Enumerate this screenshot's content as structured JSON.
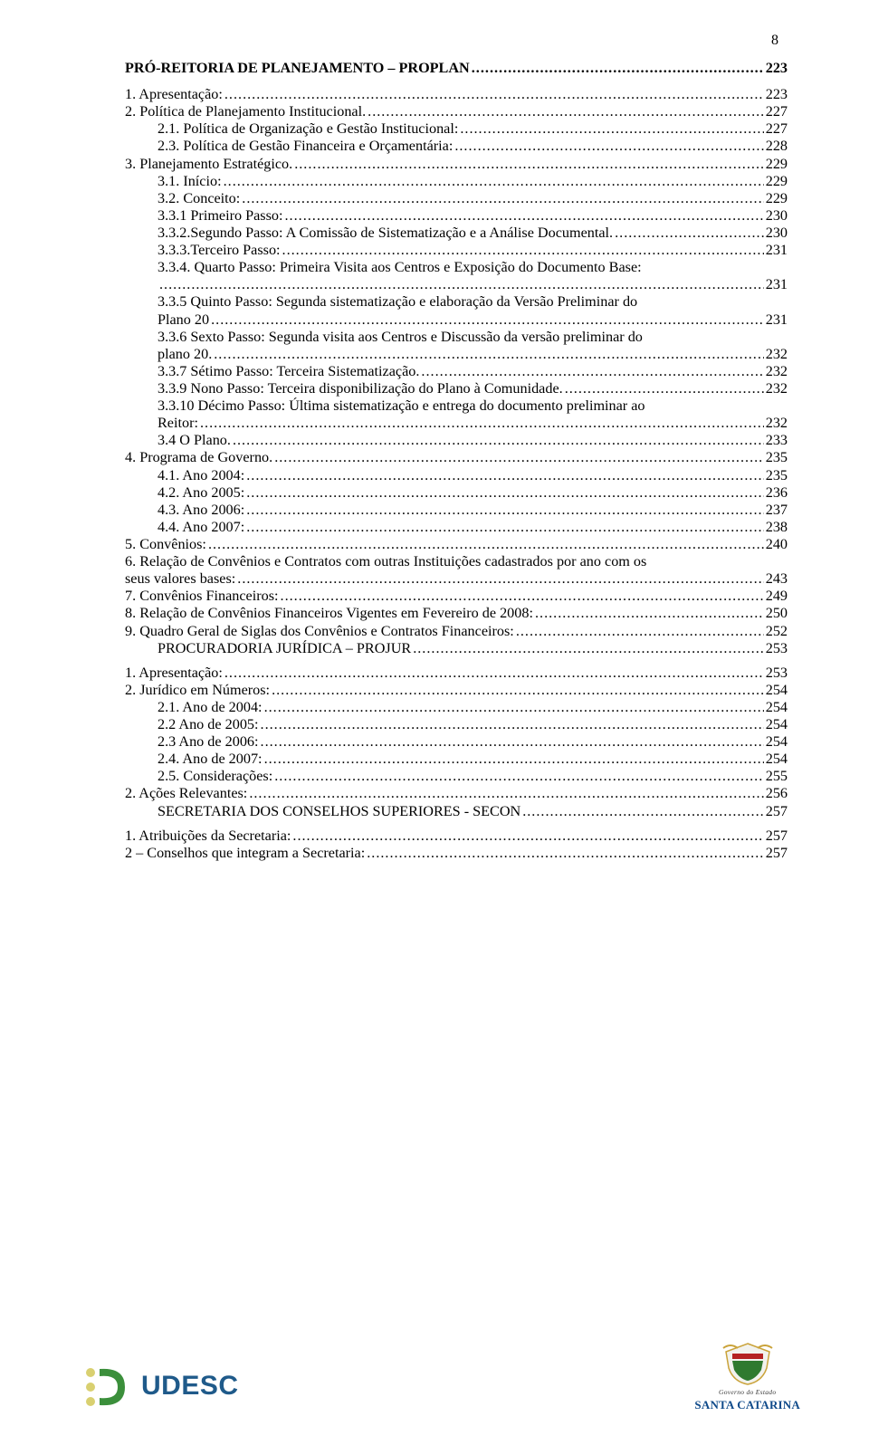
{
  "page_number": "8",
  "chapters": [
    {
      "label": "PRÓ-REITORIA DE PLANEJAMENTO – PROPLAN",
      "page": "223"
    },
    {
      "label": "PROCURADORIA JURÍDICA – PROJUR",
      "page": "253"
    },
    {
      "label": "SECRETARIA DOS CONSELHOS SUPERIORES - SECON",
      "page": "257"
    }
  ],
  "entries": [
    {
      "indent": "ind1",
      "label": "1. Apresentação:",
      "page": "223"
    },
    {
      "indent": "ind1",
      "label": "2. Política de Planejamento Institucional.",
      "page": "227"
    },
    {
      "indent": "ind2",
      "label": "2.1. Política de Organização e Gestão Institucional:",
      "page": "227"
    },
    {
      "indent": "ind2",
      "label": "2.3. Política de Gestão Financeira e Orçamentária:",
      "page": "228"
    },
    {
      "indent": "ind1",
      "label": "3. Planejamento Estratégico.",
      "page": "229"
    },
    {
      "indent": "ind2",
      "label": "3.1. Início:",
      "page": "229"
    },
    {
      "indent": "ind2",
      "label": "3.2. Conceito:",
      "page": "229"
    },
    {
      "indent": "ind3",
      "label": "3.3.1 Primeiro Passo:",
      "page": "230"
    },
    {
      "indent": "ind3",
      "label": "3.3.2.Segundo Passo: A Comissão de Sistematização e a Análise Documental.",
      "page": "230"
    },
    {
      "indent": "ind3",
      "label": "3.3.3.Terceiro Passo:",
      "page": "231"
    },
    {
      "indent": "ind3",
      "label": "3.3.4. Quarto Passo: Primeira Visita aos Centros e Exposição do Documento Base:",
      "cont": "",
      "page": "231"
    },
    {
      "indent": "ind3",
      "label": "3.3.5 Quinto Passo: Segunda sistematização e elaboração da Versão Preliminar do",
      "cont": "Plano 20",
      "page": "231"
    },
    {
      "indent": "ind3",
      "label": "3.3.6 Sexto Passo: Segunda visita aos Centros e Discussão da versão preliminar do",
      "cont": "plano 20.",
      "page": "232"
    },
    {
      "indent": "ind3",
      "label": "3.3.7 Sétimo Passo: Terceira Sistematização.",
      "page": "232"
    },
    {
      "indent": "ind3",
      "label": "3.3.9 Nono Passo: Terceira disponibilização do Plano à Comunidade.",
      "page": "232"
    },
    {
      "indent": "ind3",
      "label": "3.3.10 Décimo Passo: Última sistematização e entrega do documento preliminar ao",
      "cont": "Reitor:",
      "page": "232"
    },
    {
      "indent": "ind2",
      "label": "3.4 O Plano.",
      "page": "233"
    },
    {
      "indent": "ind1",
      "label": "4. Programa de Governo.",
      "page": "235"
    },
    {
      "indent": "ind2",
      "label": "4.1. Ano 2004:",
      "page": "235"
    },
    {
      "indent": "ind2",
      "label": "4.2. Ano 2005:",
      "page": "236"
    },
    {
      "indent": "ind2",
      "label": "4.3. Ano 2006:",
      "page": "237"
    },
    {
      "indent": "ind2",
      "label": "4.4. Ano 2007:",
      "page": "238"
    },
    {
      "indent": "ind1",
      "label": "5. Convênios:",
      "page": "240"
    },
    {
      "indent": "ind1",
      "label": "6. Relação de Convênios e Contratos com outras Instituições cadastrados por ano com os",
      "cont_ind": "ind1",
      "cont": "seus valores bases:",
      "page": "243"
    },
    {
      "indent": "ind1",
      "label": "7. Convênios Financeiros:",
      "page": "249"
    },
    {
      "indent": "ind1",
      "label": "8. Relação de Convênios Financeiros Vigentes em Fevereiro de 2008:",
      "page": "250"
    },
    {
      "indent": "ind1",
      "label": "9. Quadro Geral de Siglas dos Convênios e Contratos Financeiros:",
      "page": "252"
    }
  ],
  "entries2": [
    {
      "indent": "ind1",
      "label": "1.    Apresentação:",
      "page": "253"
    },
    {
      "indent": "ind1",
      "label": "2. Jurídico em Números:",
      "page": "254"
    },
    {
      "indent": "ind2",
      "label": "2.1. Ano de 2004:",
      "page": "254"
    },
    {
      "indent": "ind2",
      "label": "2.2 Ano de 2005:",
      "page": "254"
    },
    {
      "indent": "ind2",
      "label": "2.3 Ano de 2006:",
      "page": "254"
    },
    {
      "indent": "ind2",
      "label": "2.4. Ano de 2007:",
      "page": "254"
    },
    {
      "indent": "ind2",
      "label": "2.5. Considerações:",
      "page": "255"
    },
    {
      "indent": "ind1",
      "label": "2.    Ações Relevantes:",
      "page": "256"
    }
  ],
  "entries3": [
    {
      "indent": "ind1",
      "label": "1.    Atribuições da Secretaria:",
      "page": "257"
    },
    {
      "indent": "ind1",
      "label": "2 – Conselhos que integram a Secretaria:",
      "page": "257"
    }
  ],
  "footer": {
    "udesc_text": "UDESC",
    "sc_line1": "Governo do Estado",
    "sc_line2": "SANTA CATARINA"
  },
  "colors": {
    "text": "#000000",
    "bg": "#ffffff",
    "udesc_bullet": "#d9d070",
    "udesc_green": "#3b8f3b",
    "udesc_blue": "#1f5a8a",
    "sc_blue": "#0f4a8a",
    "crest_green": "#2f7a2f",
    "crest_red": "#b52222",
    "crest_gold": "#caa33a"
  }
}
